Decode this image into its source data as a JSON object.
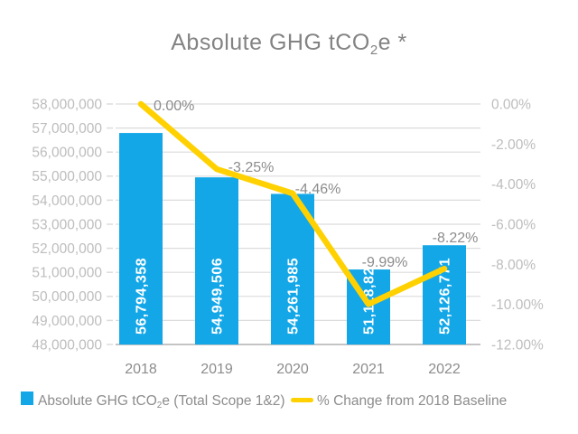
{
  "title": {
    "prefix": "Absolute GHG tCO",
    "sub": "2",
    "suffix": "e *"
  },
  "chart_data": {
    "type": "combo-bar-line",
    "title": "Absolute GHG tCO2e *",
    "categories": [
      "2018",
      "2019",
      "2020",
      "2021",
      "2022"
    ],
    "series": [
      {
        "name": "Absolute GHG tCO2e (Total Scope 1&2)",
        "type": "bar",
        "axis": "left",
        "values": [
          56794358,
          54949506,
          54261985,
          51118829,
          52126771
        ],
        "labels": [
          "56,794,358",
          "54,949,506",
          "54,261,985",
          "51,118,829",
          "52,126,771"
        ]
      },
      {
        "name": "% Change from 2018 Baseline",
        "type": "line",
        "axis": "right",
        "values": [
          0,
          -3.25,
          -4.46,
          -9.99,
          -8.22
        ],
        "labels": [
          "0.00%",
          "-3.25%",
          "-4.46%",
          "-9.99%",
          "-8.22%"
        ]
      }
    ],
    "left_axis": {
      "min": 48000000,
      "max": 58000000,
      "step": 1000000,
      "tick_labels": [
        "58,000,000",
        "57,000,000",
        "56,000,000",
        "55,000,000",
        "54,000,000",
        "53,000,000",
        "52,000,000",
        "51,000,000",
        "50,000,000",
        "49,000,000",
        "48,000,000"
      ]
    },
    "right_axis": {
      "min": -12,
      "max": 0,
      "step": 2,
      "tick_labels": [
        "0.00%",
        "-2.00%",
        "-4.00%",
        "-6.00%",
        "-8.00%",
        "-10.00%",
        "-12.00%"
      ]
    },
    "grid": true,
    "legend_position": "bottom"
  },
  "legend": {
    "bar": {
      "prefix": "Absolute GHG tCO",
      "sub": "2",
      "suffix": "e (Total Scope 1&2)"
    },
    "line": {
      "label": "% Change from 2018 Baseline"
    }
  },
  "colors": {
    "bar": "#14A7E8",
    "line": "#FFD100",
    "grid": "#DCDCDC",
    "axis_line": "#C4C4C4",
    "axis_text": "#BDBDBD",
    "label_text": "#8C8C8C",
    "title_text": "#838383",
    "bar_label_text": "#FFFFFF"
  }
}
